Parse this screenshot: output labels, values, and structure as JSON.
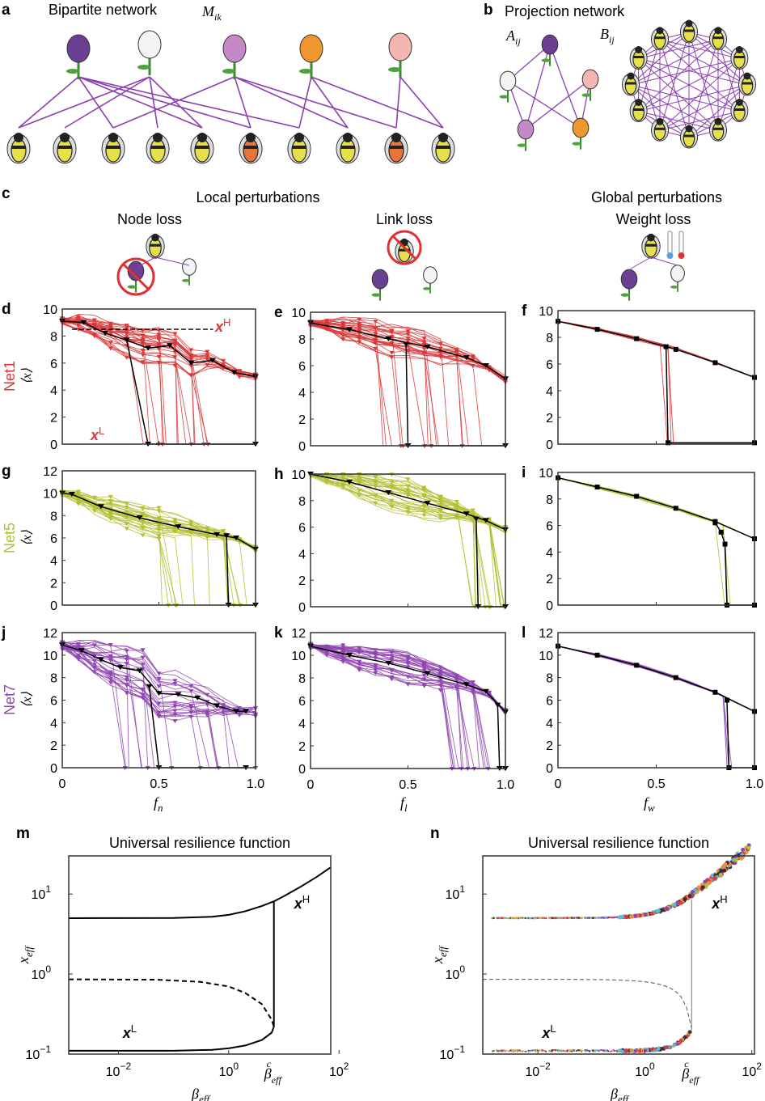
{
  "panel_a": {
    "letter": "a",
    "title": "Bipartite network",
    "matrix_label": "M",
    "matrix_sub": "ik"
  },
  "panel_b": {
    "letter": "b",
    "title": "Projection network",
    "a_label": "A",
    "a_sub": "ij",
    "b_label": "B",
    "b_sub": "ij"
  },
  "panel_c": {
    "letter": "c",
    "local": "Local perturbations",
    "global": "Global perturbations",
    "node_loss": "Node loss",
    "link_loss": "Link loss",
    "weight_loss": "Weight loss"
  },
  "rows": [
    {
      "name": "Net1",
      "color": "#d9383a"
    },
    {
      "name": "Net5",
      "color": "#b3c034"
    },
    {
      "name": "Net7",
      "color": "#9046b0"
    }
  ],
  "ylabel_rows": "⟨x⟩",
  "xlabels": {
    "n": "f",
    "n_sub": "n",
    "l": "f",
    "l_sub": "l",
    "w": "f",
    "w_sub": "w"
  },
  "annot": {
    "xH": "x",
    "H": "H",
    "xL": "x",
    "L": "L"
  },
  "chart_data": [
    {
      "id": "d",
      "type": "line",
      "xlim": [
        0,
        1
      ],
      "ylim": [
        0,
        10
      ],
      "yticks": [
        0,
        2,
        4,
        6,
        8,
        10
      ],
      "xticks": [],
      "color": "#d9383a",
      "collapse_range": [
        0.33,
        0.78
      ],
      "dashed_xH": 8.5,
      "series": [
        {
          "color": "#000000",
          "x": [
            0,
            0.111,
            0.222,
            0.333,
            0.444,
            0.556,
            0.667,
            0.778,
            0.889,
            1
          ],
          "y": [
            9.1,
            9.0,
            8.2,
            7.7,
            7.1,
            7.3,
            6.0,
            6.2,
            5.3,
            5.0
          ]
        },
        {
          "color": "#000000",
          "x": [
            0.333,
            0.444,
            1
          ],
          "y": [
            7.7,
            0,
            0
          ]
        }
      ]
    },
    {
      "id": "e",
      "type": "line",
      "xlim": [
        0,
        1
      ],
      "ylim": [
        0,
        10
      ],
      "yticks": [
        0,
        2,
        4,
        6,
        8,
        10
      ],
      "xticks": [],
      "color": "#d9383a",
      "collapse_range": [
        0.35,
        0.95
      ],
      "series": [
        {
          "color": "#000000",
          "x": [
            0,
            0.2,
            0.4,
            0.6,
            0.8,
            0.9,
            1
          ],
          "y": [
            9.2,
            8.7,
            8.0,
            7.4,
            6.6,
            6.0,
            5.0
          ]
        },
        {
          "color": "#000000",
          "x": [
            0.49,
            0.5,
            1
          ],
          "y": [
            7.6,
            0,
            0
          ]
        }
      ]
    },
    {
      "id": "f",
      "type": "line",
      "xlim": [
        0,
        1
      ],
      "ylim": [
        0,
        10
      ],
      "yticks": [
        0,
        2,
        4,
        6,
        8,
        10
      ],
      "xticks": [],
      "color": "#d9383a",
      "collapse_range": [
        0.52,
        0.58
      ],
      "series": [
        {
          "color": "#000000",
          "x": [
            0,
            0.2,
            0.4,
            0.6,
            0.8,
            1
          ],
          "y": [
            9.2,
            8.6,
            7.9,
            7.1,
            6.1,
            5.0
          ]
        },
        {
          "color": "#000000",
          "x": [
            0.55,
            0.56,
            1
          ],
          "y": [
            7.3,
            0.1,
            0.1
          ]
        }
      ]
    },
    {
      "id": "g",
      "type": "line",
      "xlim": [
        0,
        1
      ],
      "ylim": [
        0,
        12
      ],
      "yticks": [
        0,
        2,
        4,
        6,
        8,
        10,
        12
      ],
      "xticks": [],
      "color": "#b3c034",
      "collapse_range": [
        0.5,
        0.98
      ],
      "series": [
        {
          "color": "#000000",
          "x": [
            0,
            0.05,
            0.2,
            0.4,
            0.6,
            0.8,
            0.9,
            1
          ],
          "y": [
            10,
            9.9,
            8.8,
            7.8,
            7.0,
            6.3,
            6.0,
            5.0
          ]
        },
        {
          "color": "#000000",
          "x": [
            0.85,
            0.86,
            1
          ],
          "y": [
            6.2,
            0,
            0
          ]
        }
      ]
    },
    {
      "id": "h",
      "type": "line",
      "xlim": [
        0,
        1
      ],
      "ylim": [
        0,
        10
      ],
      "yticks": [
        0,
        2,
        4,
        6,
        8,
        10
      ],
      "xticks": [],
      "color": "#b3c034",
      "collapse_range": [
        0.77,
        0.99
      ],
      "series": [
        {
          "color": "#000000",
          "x": [
            0,
            0.2,
            0.4,
            0.6,
            0.8,
            0.9,
            1
          ],
          "y": [
            10,
            9.4,
            8.6,
            7.8,
            7.0,
            6.5,
            5.8
          ]
        },
        {
          "color": "#000000",
          "x": [
            0.85,
            0.86,
            1
          ],
          "y": [
            6.6,
            0,
            0
          ]
        }
      ]
    },
    {
      "id": "i",
      "type": "line",
      "xlim": [
        0,
        1
      ],
      "ylim": [
        0,
        10
      ],
      "yticks": [
        0,
        2,
        4,
        6,
        8,
        10
      ],
      "xticks": [],
      "color": "#b3c034",
      "collapse_range": [
        0.8,
        0.87
      ],
      "series": [
        {
          "color": "#000000",
          "x": [
            0,
            0.2,
            0.4,
            0.6,
            0.8,
            1
          ],
          "y": [
            9.6,
            8.9,
            8.2,
            7.3,
            6.3,
            5.0
          ]
        },
        {
          "color": "#000000",
          "x": [
            0.8,
            0.83,
            0.85,
            0.86,
            1
          ],
          "y": [
            6.2,
            5.5,
            4.6,
            0,
            0
          ]
        }
      ]
    },
    {
      "id": "j",
      "type": "line",
      "xlim": [
        0,
        1
      ],
      "ylim": [
        0,
        12
      ],
      "yticks": [
        0,
        2,
        4,
        6,
        8,
        10,
        12
      ],
      "xticks": [
        "0",
        "0.5",
        "1.0"
      ],
      "color": "#9046b0",
      "collapse_range": [
        0.3,
        0.95
      ],
      "series": [
        {
          "color": "#000000",
          "x": [
            0,
            0.1,
            0.2,
            0.3,
            0.4,
            0.5,
            0.6,
            0.7,
            0.8,
            0.9,
            0.95
          ],
          "y": [
            10.9,
            10.4,
            9.6,
            8.9,
            8.6,
            6.6,
            6.5,
            6.2,
            5.5,
            5.0,
            5.0
          ]
        },
        {
          "color": "#000000",
          "x": [
            0.45,
            0.5,
            0.95
          ],
          "y": [
            7.2,
            0,
            0
          ]
        }
      ]
    },
    {
      "id": "k",
      "type": "line",
      "xlim": [
        0,
        1
      ],
      "ylim": [
        0,
        12
      ],
      "yticks": [
        0,
        2,
        4,
        6,
        8,
        10,
        12
      ],
      "xticks": [
        "0",
        "0.5",
        "1.0"
      ],
      "color": "#9046b0",
      "collapse_range": [
        0.7,
        0.98
      ],
      "series": [
        {
          "color": "#000000",
          "x": [
            0,
            0.2,
            0.4,
            0.6,
            0.8,
            0.9,
            1
          ],
          "y": [
            10.8,
            10.0,
            9.3,
            8.4,
            7.4,
            6.8,
            5.0
          ]
        },
        {
          "color": "#000000",
          "x": [
            0.96,
            0.97,
            1
          ],
          "y": [
            5.6,
            0,
            0
          ]
        }
      ]
    },
    {
      "id": "l",
      "type": "line",
      "xlim": [
        0,
        1
      ],
      "ylim": [
        0,
        12
      ],
      "yticks": [
        0,
        2,
        4,
        6,
        8,
        10,
        12
      ],
      "xticks": [
        "0",
        "0.5",
        "1.0"
      ],
      "color": "#9046b0",
      "collapse_range": [
        0.85,
        0.88
      ],
      "series": [
        {
          "color": "#000000",
          "x": [
            0,
            0.2,
            0.4,
            0.6,
            0.8,
            1
          ],
          "y": [
            10.8,
            10.0,
            9.1,
            8.0,
            6.7,
            5.0
          ]
        },
        {
          "color": "#000000",
          "x": [
            0.86,
            0.87,
            1
          ],
          "y": [
            6.0,
            0,
            0
          ]
        }
      ]
    },
    {
      "id": "m",
      "type": "line",
      "letter": "m",
      "title": "Universal resilience function",
      "xscale": "log",
      "yscale": "log",
      "xlim": [
        0.00126,
        70
      ],
      "ylim": [
        0.1,
        30
      ],
      "xticks": [
        "10",
        "10",
        "10"
      ],
      "xtick_exp": [
        "−2",
        "0",
        "2"
      ],
      "yticks": [
        "10",
        "10",
        "10"
      ],
      "ytick_exp": [
        "−1",
        "0",
        "1"
      ],
      "xlabel": "β",
      "xlabel_sub": "eff",
      "ylabel": "x",
      "ylabel_sub": "eff",
      "critical_label": "β",
      "critical_sup": "c",
      "critical_sub": "eff",
      "beta_c": 6.6,
      "series": [
        {
          "style": "solid",
          "x": [
            0.00126,
            0.1,
            0.5,
            1,
            2,
            4,
            6.6,
            10,
            20,
            40,
            70
          ],
          "y": [
            5,
            5.03,
            5.2,
            5.5,
            6.1,
            7.1,
            8.1,
            9.4,
            12.3,
            16.5,
            21.5
          ]
        },
        {
          "style": "solid",
          "x": [
            0.00126,
            0.1,
            0.5,
            1,
            2,
            4,
            6,
            6.6
          ],
          "y": [
            0.11,
            0.11,
            0.113,
            0.118,
            0.128,
            0.15,
            0.185,
            0.22
          ]
        },
        {
          "style": "dashed",
          "x": [
            0.00126,
            0.05,
            0.3,
            1,
            2,
            4,
            6,
            6.6
          ],
          "y": [
            0.86,
            0.85,
            0.8,
            0.7,
            0.58,
            0.42,
            0.27,
            0.22
          ]
        },
        {
          "style": "solid",
          "x": [
            6.6,
            6.6
          ],
          "y": [
            0.22,
            8.1
          ]
        }
      ]
    },
    {
      "id": "n",
      "type": "scatter",
      "letter": "n",
      "title": "Universal resilience function",
      "xscale": "log",
      "yscale": "log",
      "xlim": [
        0.001,
        100
      ],
      "ylim": [
        0.1,
        30
      ],
      "xticks": [
        "10",
        "10",
        "10"
      ],
      "xtick_exp": [
        "−2",
        "0",
        "2"
      ],
      "yticks": [
        "10",
        "10",
        "10"
      ],
      "ytick_exp": [
        "−1",
        "0",
        "1"
      ],
      "xlabel": "β",
      "xlabel_sub": "eff",
      "ylabel": "x",
      "ylabel_sub": "eff",
      "critical_label": "β",
      "critical_sup": "c",
      "critical_sub": "eff",
      "beta_c": 7.5,
      "colors": [
        "#d9383a",
        "#9046b0",
        "#5bb8e0",
        "#b3c034",
        "#333333",
        "#f08a4b"
      ]
    }
  ]
}
